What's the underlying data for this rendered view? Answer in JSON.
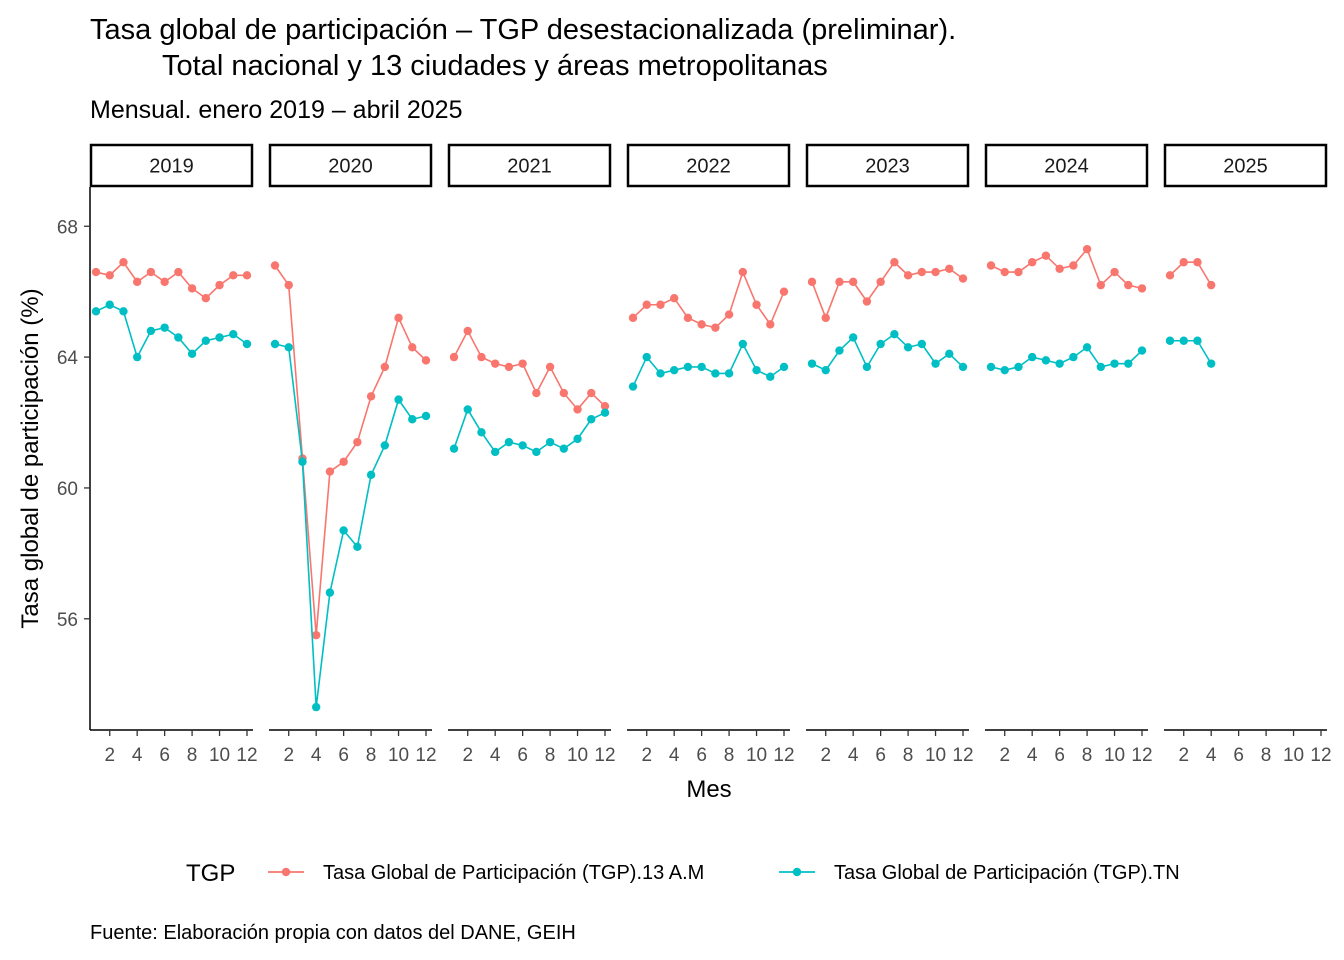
{
  "title_line1": "Tasa global de participación – TGP desestacionalizada (preliminar).",
  "title_line2": "Total nacional y 13 ciudades y áreas metropolitanas",
  "subtitle": "Mensual. enero 2019 – abril 2025",
  "caption": "Fuente: Elaboración propia con datos del DANE, GEIH",
  "chart_data": {
    "type": "line",
    "facet_by": "year",
    "facets": [
      "2019",
      "2020",
      "2021",
      "2022",
      "2023",
      "2024",
      "2025"
    ],
    "xlabel": "Mes",
    "ylabel": "Tasa global de participación (%)",
    "x_ticks": [
      "2",
      "4",
      "6",
      "8",
      "10",
      "12"
    ],
    "x_range": [
      1,
      12
    ],
    "y_ticks": [
      56,
      60,
      64,
      68
    ],
    "ylim": [
      52.6,
      69.2
    ],
    "legend_title": "TGP",
    "legend_position": "bottom",
    "series": [
      {
        "name": "Tasa Global de Participación (TGP).13 A.M",
        "color": "#F8766D",
        "values": {
          "2019": [
            66.6,
            66.5,
            66.9,
            66.3,
            66.6,
            66.3,
            66.6,
            66.1,
            65.8,
            66.2,
            66.5,
            66.5
          ],
          "2020": [
            66.8,
            66.2,
            60.9,
            55.5,
            60.5,
            60.8,
            61.4,
            62.8,
            63.7,
            65.2,
            64.3,
            63.9
          ],
          "2021": [
            64.0,
            64.8,
            64.0,
            63.8,
            63.7,
            63.8,
            62.9,
            63.7,
            62.9,
            62.4,
            62.9,
            62.5
          ],
          "2022": [
            65.2,
            65.6,
            65.6,
            65.8,
            65.2,
            65.0,
            64.9,
            65.3,
            66.6,
            65.6,
            65.0,
            66.0
          ],
          "2023": [
            66.3,
            65.2,
            66.3,
            66.3,
            65.7,
            66.3,
            66.9,
            66.5,
            66.6,
            66.6,
            66.7,
            66.4
          ],
          "2024": [
            66.8,
            66.6,
            66.6,
            66.9,
            67.1,
            66.7,
            66.8,
            67.3,
            66.2,
            66.6,
            66.2,
            66.1
          ],
          "2025": [
            66.5,
            66.9,
            66.9,
            66.2
          ]
        }
      },
      {
        "name": "Tasa Global de Participación (TGP).TN",
        "color": "#00BFC4",
        "values": {
          "2019": [
            65.4,
            65.6,
            65.4,
            64.0,
            64.8,
            64.9,
            64.6,
            64.1,
            64.5,
            64.6,
            64.7,
            64.4
          ],
          "2020": [
            64.4,
            64.3,
            60.8,
            53.3,
            56.8,
            58.7,
            58.2,
            60.4,
            61.3,
            62.7,
            62.1,
            62.2
          ],
          "2021": [
            61.2,
            62.4,
            61.7,
            61.1,
            61.4,
            61.3,
            61.1,
            61.4,
            61.2,
            61.5,
            62.1,
            62.3
          ],
          "2022": [
            63.1,
            64.0,
            63.5,
            63.6,
            63.7,
            63.7,
            63.5,
            63.5,
            64.4,
            63.6,
            63.4,
            63.7
          ],
          "2023": [
            63.8,
            63.6,
            64.2,
            64.6,
            63.7,
            64.4,
            64.7,
            64.3,
            64.4,
            63.8,
            64.1,
            63.7
          ],
          "2024": [
            63.7,
            63.6,
            63.7,
            64.0,
            63.9,
            63.8,
            64.0,
            64.3,
            63.7,
            63.8,
            63.8,
            64.2
          ],
          "2025": [
            64.5,
            64.5,
            64.5,
            63.8
          ]
        }
      }
    ]
  }
}
